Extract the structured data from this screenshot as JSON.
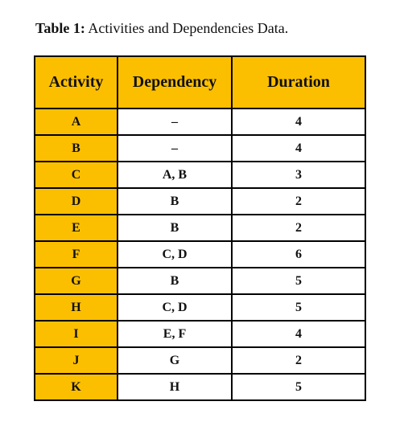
{
  "caption": {
    "label": "Table 1:",
    "text": "Activities and Dependencies Data."
  },
  "table": {
    "headers": [
      "Activity",
      "Dependency",
      "Duration"
    ],
    "rows": [
      {
        "activity": "A",
        "dependency": "–",
        "duration": "4"
      },
      {
        "activity": "B",
        "dependency": "–",
        "duration": "4"
      },
      {
        "activity": "C",
        "dependency": "A, B",
        "duration": "3"
      },
      {
        "activity": "D",
        "dependency": "B",
        "duration": "2"
      },
      {
        "activity": "E",
        "dependency": "B",
        "duration": "2"
      },
      {
        "activity": "F",
        "dependency": "C, D",
        "duration": "6"
      },
      {
        "activity": "G",
        "dependency": "B",
        "duration": "5"
      },
      {
        "activity": "H",
        "dependency": "C, D",
        "duration": "5"
      },
      {
        "activity": "I",
        "dependency": "E, F",
        "duration": "4"
      },
      {
        "activity": "J",
        "dependency": "G",
        "duration": "2"
      },
      {
        "activity": "K",
        "dependency": "H",
        "duration": "5"
      }
    ]
  },
  "colors": {
    "header_fill": "#fcbf00",
    "activity_fill": "#fcbf00",
    "border": "#000000"
  }
}
